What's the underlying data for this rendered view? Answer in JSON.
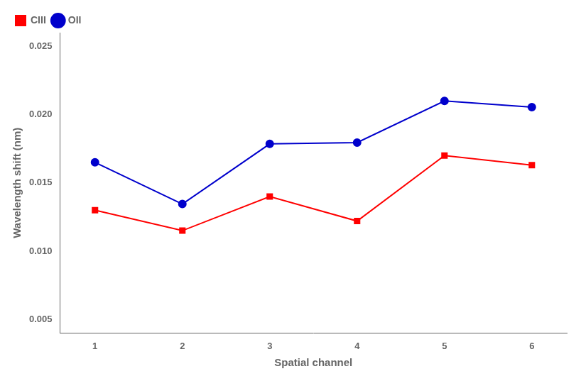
{
  "chart_data": {
    "type": "line",
    "xlabel": "Spatial channel",
    "ylabel": "Wavelength shift (nm)",
    "x": [
      1,
      2,
      3,
      4,
      5,
      6
    ],
    "series": [
      {
        "name": "CIII",
        "color": "#ff0000",
        "marker": "square",
        "values": [
          0.013,
          0.0115,
          0.014,
          0.0122,
          0.017,
          0.0163
        ]
      },
      {
        "name": "OII",
        "color": "#0000cc",
        "marker": "circle",
        "values": [
          0.0165,
          0.01345,
          0.01785,
          0.01795,
          0.021,
          0.02055
        ]
      }
    ],
    "xlim": [
      0.6,
      6.4
    ],
    "xticks": [
      1,
      2,
      3,
      4,
      5,
      6
    ],
    "ylim": [
      0.004,
      0.026
    ],
    "yticks": [
      0.005,
      {
        "value": 0.01,
        "label": "0.010"
      },
      0.015,
      {
        "value": 0.02,
        "label": "0.020"
      },
      0.025
    ],
    "grid": false,
    "legend": "upper left"
  }
}
